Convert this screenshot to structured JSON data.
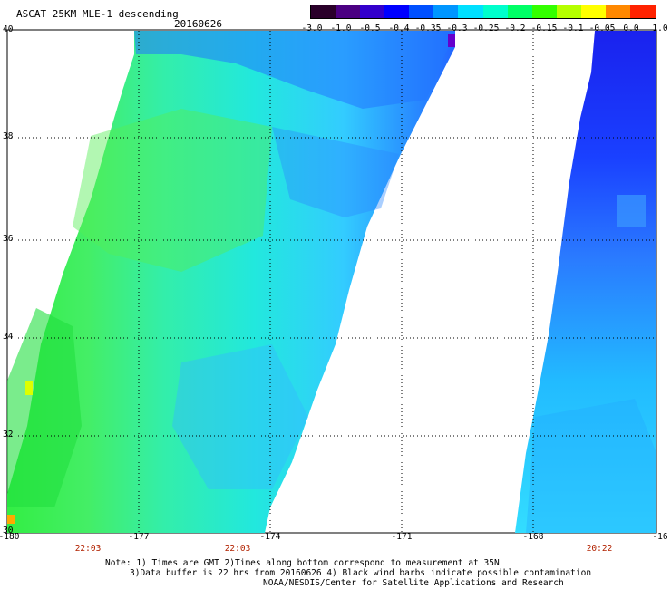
{
  "header": {
    "title": "ASCAT 25KM MLE-1 descending",
    "date": "20160626"
  },
  "colorbar": {
    "ticks": [
      "-3.0",
      "-1.0",
      "-0.5",
      "-0.4",
      "-0.35",
      "-0.3",
      "-0.25",
      "-0.2",
      "-0.15",
      "-0.1",
      "-0.05",
      "0.0",
      "1.0"
    ],
    "colors": [
      "#2a002a",
      "#4b0082",
      "#3300cc",
      "#0000ff",
      "#0050ff",
      "#0096ff",
      "#00e0ff",
      "#00ffcc",
      "#00ff66",
      "#33ff00",
      "#b5ff00",
      "#ffff00",
      "#ff8800",
      "#ff2200"
    ]
  },
  "map": {
    "lat_labels": [
      "40",
      "38",
      "36",
      "34",
      "32",
      "30"
    ],
    "lon_labels": [
      "-180",
      "-177",
      "-174",
      "-171",
      "-168",
      "-16"
    ],
    "time_labels": [
      "22:03",
      "22:03",
      "20:22"
    ],
    "lon_range": [
      -180,
      -165
    ],
    "lat_range": [
      30,
      40
    ]
  },
  "footer": {
    "line1": "Note: 1) Times are GMT 2)Times along bottom correspond to measurement at 35N",
    "line2": "3)Data buffer is 22 hrs from 20160626 4) Black wind barbs indicate possible contamination",
    "line3": "NOAA/NESDIS/Center for Satellite Applications and Research"
  }
}
